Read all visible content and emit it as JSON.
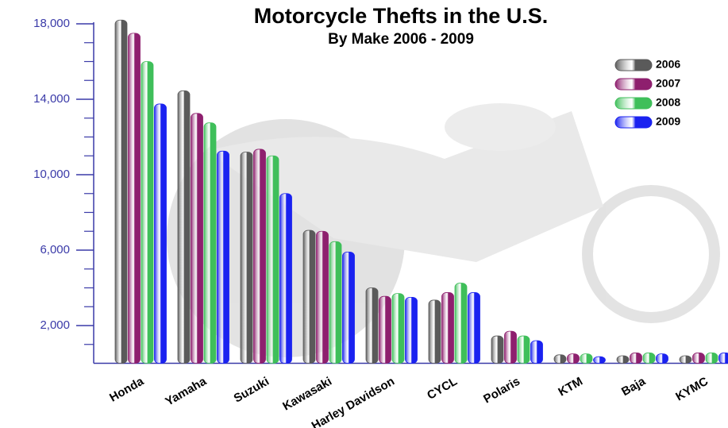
{
  "chart_data": {
    "type": "bar",
    "title": "Motorcycle Thefts in the U.S.",
    "subtitle": "By Make 2006 - 2009",
    "categories": [
      "Honda",
      "Yamaha",
      "Suzuki",
      "Kawasaki",
      "Harley Davidson",
      "CYCL",
      "Polaris",
      "KTM",
      "Baja",
      "KYMC"
    ],
    "series": [
      {
        "name": "2006",
        "color": "#5a5a5a",
        "values": [
          18200,
          14450,
          11200,
          7050,
          4000,
          3350,
          1450,
          450,
          400,
          400
        ]
      },
      {
        "name": "2007",
        "color": "#8e1f6e",
        "values": [
          17500,
          13250,
          11350,
          7000,
          3550,
          3750,
          1700,
          500,
          550,
          550
        ]
      },
      {
        "name": "2008",
        "color": "#3fbf5a",
        "values": [
          16000,
          12750,
          11000,
          6450,
          3700,
          4250,
          1450,
          500,
          550,
          550
        ]
      },
      {
        "name": "2009",
        "color": "#1a22f0",
        "values": [
          13750,
          11250,
          9000,
          5900,
          3500,
          3750,
          1200,
          350,
          500,
          550
        ]
      }
    ],
    "ylim": [
      0,
      18000
    ],
    "yticks": [
      {
        "value": 2000,
        "label": "2,000"
      },
      {
        "value": 6000,
        "label": "6,000"
      },
      {
        "value": 10000,
        "label": "10,000"
      },
      {
        "value": 14000,
        "label": "14,000"
      },
      {
        "value": 18000,
        "label": "18,000"
      }
    ],
    "yticks_minor": [
      1000,
      3000,
      4000,
      5000,
      7000,
      8000,
      9000,
      11000,
      12000,
      13000,
      15000,
      16000,
      17000
    ],
    "legend": "upper right"
  }
}
